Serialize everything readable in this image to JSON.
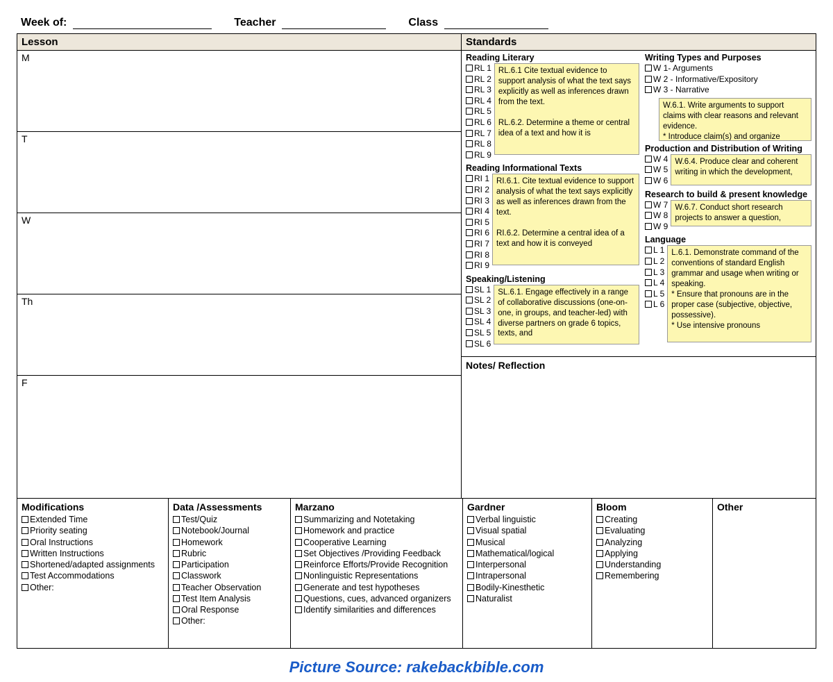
{
  "colors": {
    "border": "#000000",
    "section_bg": "#ede7db",
    "note_bg": "#fdf7b2",
    "caption": "#1a5cc8",
    "background": "#ffffff"
  },
  "header": {
    "week_label": "Week of:",
    "teacher_label": "Teacher",
    "class_label": "Class"
  },
  "sections": {
    "lesson": "Lesson",
    "standards": "Standards",
    "notes": "Notes/ Reflection"
  },
  "days": [
    "M",
    "T",
    "W",
    "Th",
    "F"
  ],
  "standards_left": [
    {
      "title": "Reading Literary",
      "items": [
        "RL 1",
        "RL 2",
        "RL 3",
        "RL 4",
        "RL 5",
        "RL 6",
        "RL 7",
        "RL 8",
        "RL 9"
      ],
      "note": "RL.6.1 Cite textual evidence to support analysis of what the text says explicitly as well as inferences drawn from the text.\n\nRL.6.2. Determine a theme or central idea of a text and how it is",
      "note_height": 132
    },
    {
      "title": "Reading Informational Texts",
      "items": [
        "RI 1",
        "RI 2",
        "RI 3",
        "RI 4",
        "RI 5",
        "RI 6",
        "RI 7",
        "RI 8",
        "RI 9"
      ],
      "note": "RI.6.1. Cite textual evidence to support analysis of what the text says explicitly as well as inferences drawn from the text.\n\nRI.6.2. Determine a central idea of a text and how it is conveyed",
      "note_height": 132
    },
    {
      "title": "Speaking/Listening",
      "items": [
        "SL 1",
        "SL 2",
        "SL 3",
        "SL 4",
        "SL 5",
        "SL 6"
      ],
      "note": "SL.6.1. Engage effectively in a range of collaborative discussions (one-on-one, in groups, and teacher-led) with diverse partners on grade 6 topics, texts, and",
      "note_height": 86
    }
  ],
  "standards_right": [
    {
      "title": "Writing Types and Purposes",
      "items": [
        "W 1- Arguments",
        "W 2 - Informative/Expository",
        "W 3 - Narrative"
      ],
      "note": "W.6.1. Write arguments to support claims with clear reasons and relevant evidence.\n*  Introduce claim(s) and organize",
      "note_below": true,
      "note_height": 62
    },
    {
      "title": "Production and Distribution of Writing",
      "items": [
        "W 4",
        "W 5",
        "W 6"
      ],
      "note": "W.6.4. Produce clear and coherent writing in which the development,",
      "note_height": 45
    },
    {
      "title": "Research to build & present knowledge",
      "items": [
        "W 7",
        "W 8",
        "W 9"
      ],
      "note": "W.6.7. Conduct short research projects to answer a question,",
      "note_height": 38
    },
    {
      "title": "Language",
      "items": [
        "L 1",
        "L 2",
        "L 3",
        "L 4",
        "L 5",
        "L 6"
      ],
      "note": "L.6.1. Demonstrate command of the conventions of standard English grammar and usage when writing or speaking.\n*  Ensure that pronouns are in the proper case (subjective, objective, possessive).\n*  Use intensive pronouns",
      "note_height": 140
    }
  ],
  "bottom": [
    {
      "title": "Modifications",
      "items": [
        "Extended Time",
        "Priority seating",
        "Oral Instructions",
        "Written Instructions",
        "Shortened/adapted assignments",
        "Test Accommodations",
        "Other:"
      ]
    },
    {
      "title": "Data /Assessments",
      "items": [
        "Test/Quiz",
        "Notebook/Journal",
        "Homework",
        "Rubric",
        "Participation",
        "Classwork",
        "Teacher Observation",
        "Test Item Analysis",
        "Oral Response",
        "Other:"
      ]
    },
    {
      "title": "Marzano",
      "items": [
        "Summarizing and Notetaking",
        "Homework and practice",
        "Cooperative Learning",
        "Set Objectives /Providing Feedback",
        "Reinforce Efforts/Provide Recognition",
        "Nonlinguistic Representations",
        "Generate and test hypotheses",
        "Questions, cues, advanced organizers",
        "Identify similarities and differences"
      ]
    },
    {
      "title": "Gardner",
      "items": [
        "Verbal linguistic",
        "Visual spatial",
        "Musical",
        "Mathematical/logical",
        "Interpersonal",
        "Intrapersonal",
        "Bodily-Kinesthetic",
        "Naturalist"
      ]
    },
    {
      "title": "Bloom",
      "items": [
        "Creating",
        "Evaluating",
        "Analyzing",
        "Applying",
        "Understanding",
        "Remembering"
      ]
    },
    {
      "title": "Other",
      "items": []
    }
  ],
  "caption": "Picture Source: rakebackbible.com"
}
